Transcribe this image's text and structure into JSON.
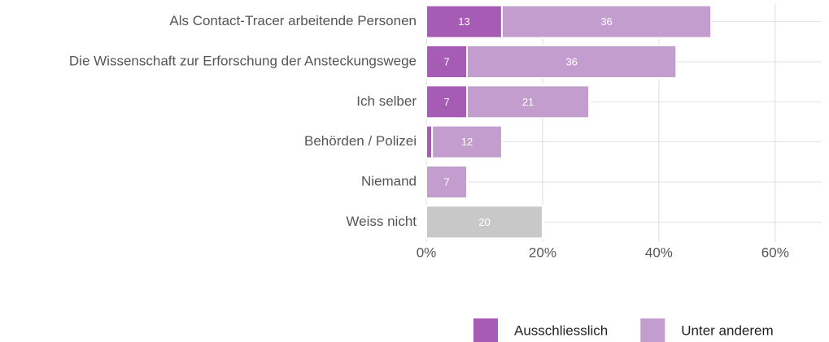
{
  "chart_data": {
    "type": "stacked-bar-horizontal",
    "categories": [
      "Als Contact-Tracer arbeitende Personen",
      "Die Wissenschaft zur Erforschung der Ansteckungswege",
      "Ich selber",
      "Behörden / Polizei",
      "Niemand",
      "Weiss nicht"
    ],
    "series": [
      {
        "name": "Ausschliesslich",
        "color": "#a65bb4",
        "values": [
          13,
          7,
          7,
          1,
          null,
          null
        ]
      },
      {
        "name": "Unter anderem",
        "color": "#c49dcf",
        "values": [
          36,
          36,
          21,
          12,
          7,
          20
        ],
        "colors": [
          "#c49dcf",
          "#c49dcf",
          "#c49dcf",
          "#c49dcf",
          "#c49dcf",
          "#c8c8c8"
        ]
      }
    ],
    "xlim": [
      0,
      68
    ],
    "xticks": [
      {
        "value": 0,
        "label": "0%"
      },
      {
        "value": 20,
        "label": "20%"
      },
      {
        "value": 40,
        "label": "40%"
      },
      {
        "value": 60,
        "label": "60%"
      }
    ],
    "grid": true,
    "legend": "bottom-right"
  }
}
